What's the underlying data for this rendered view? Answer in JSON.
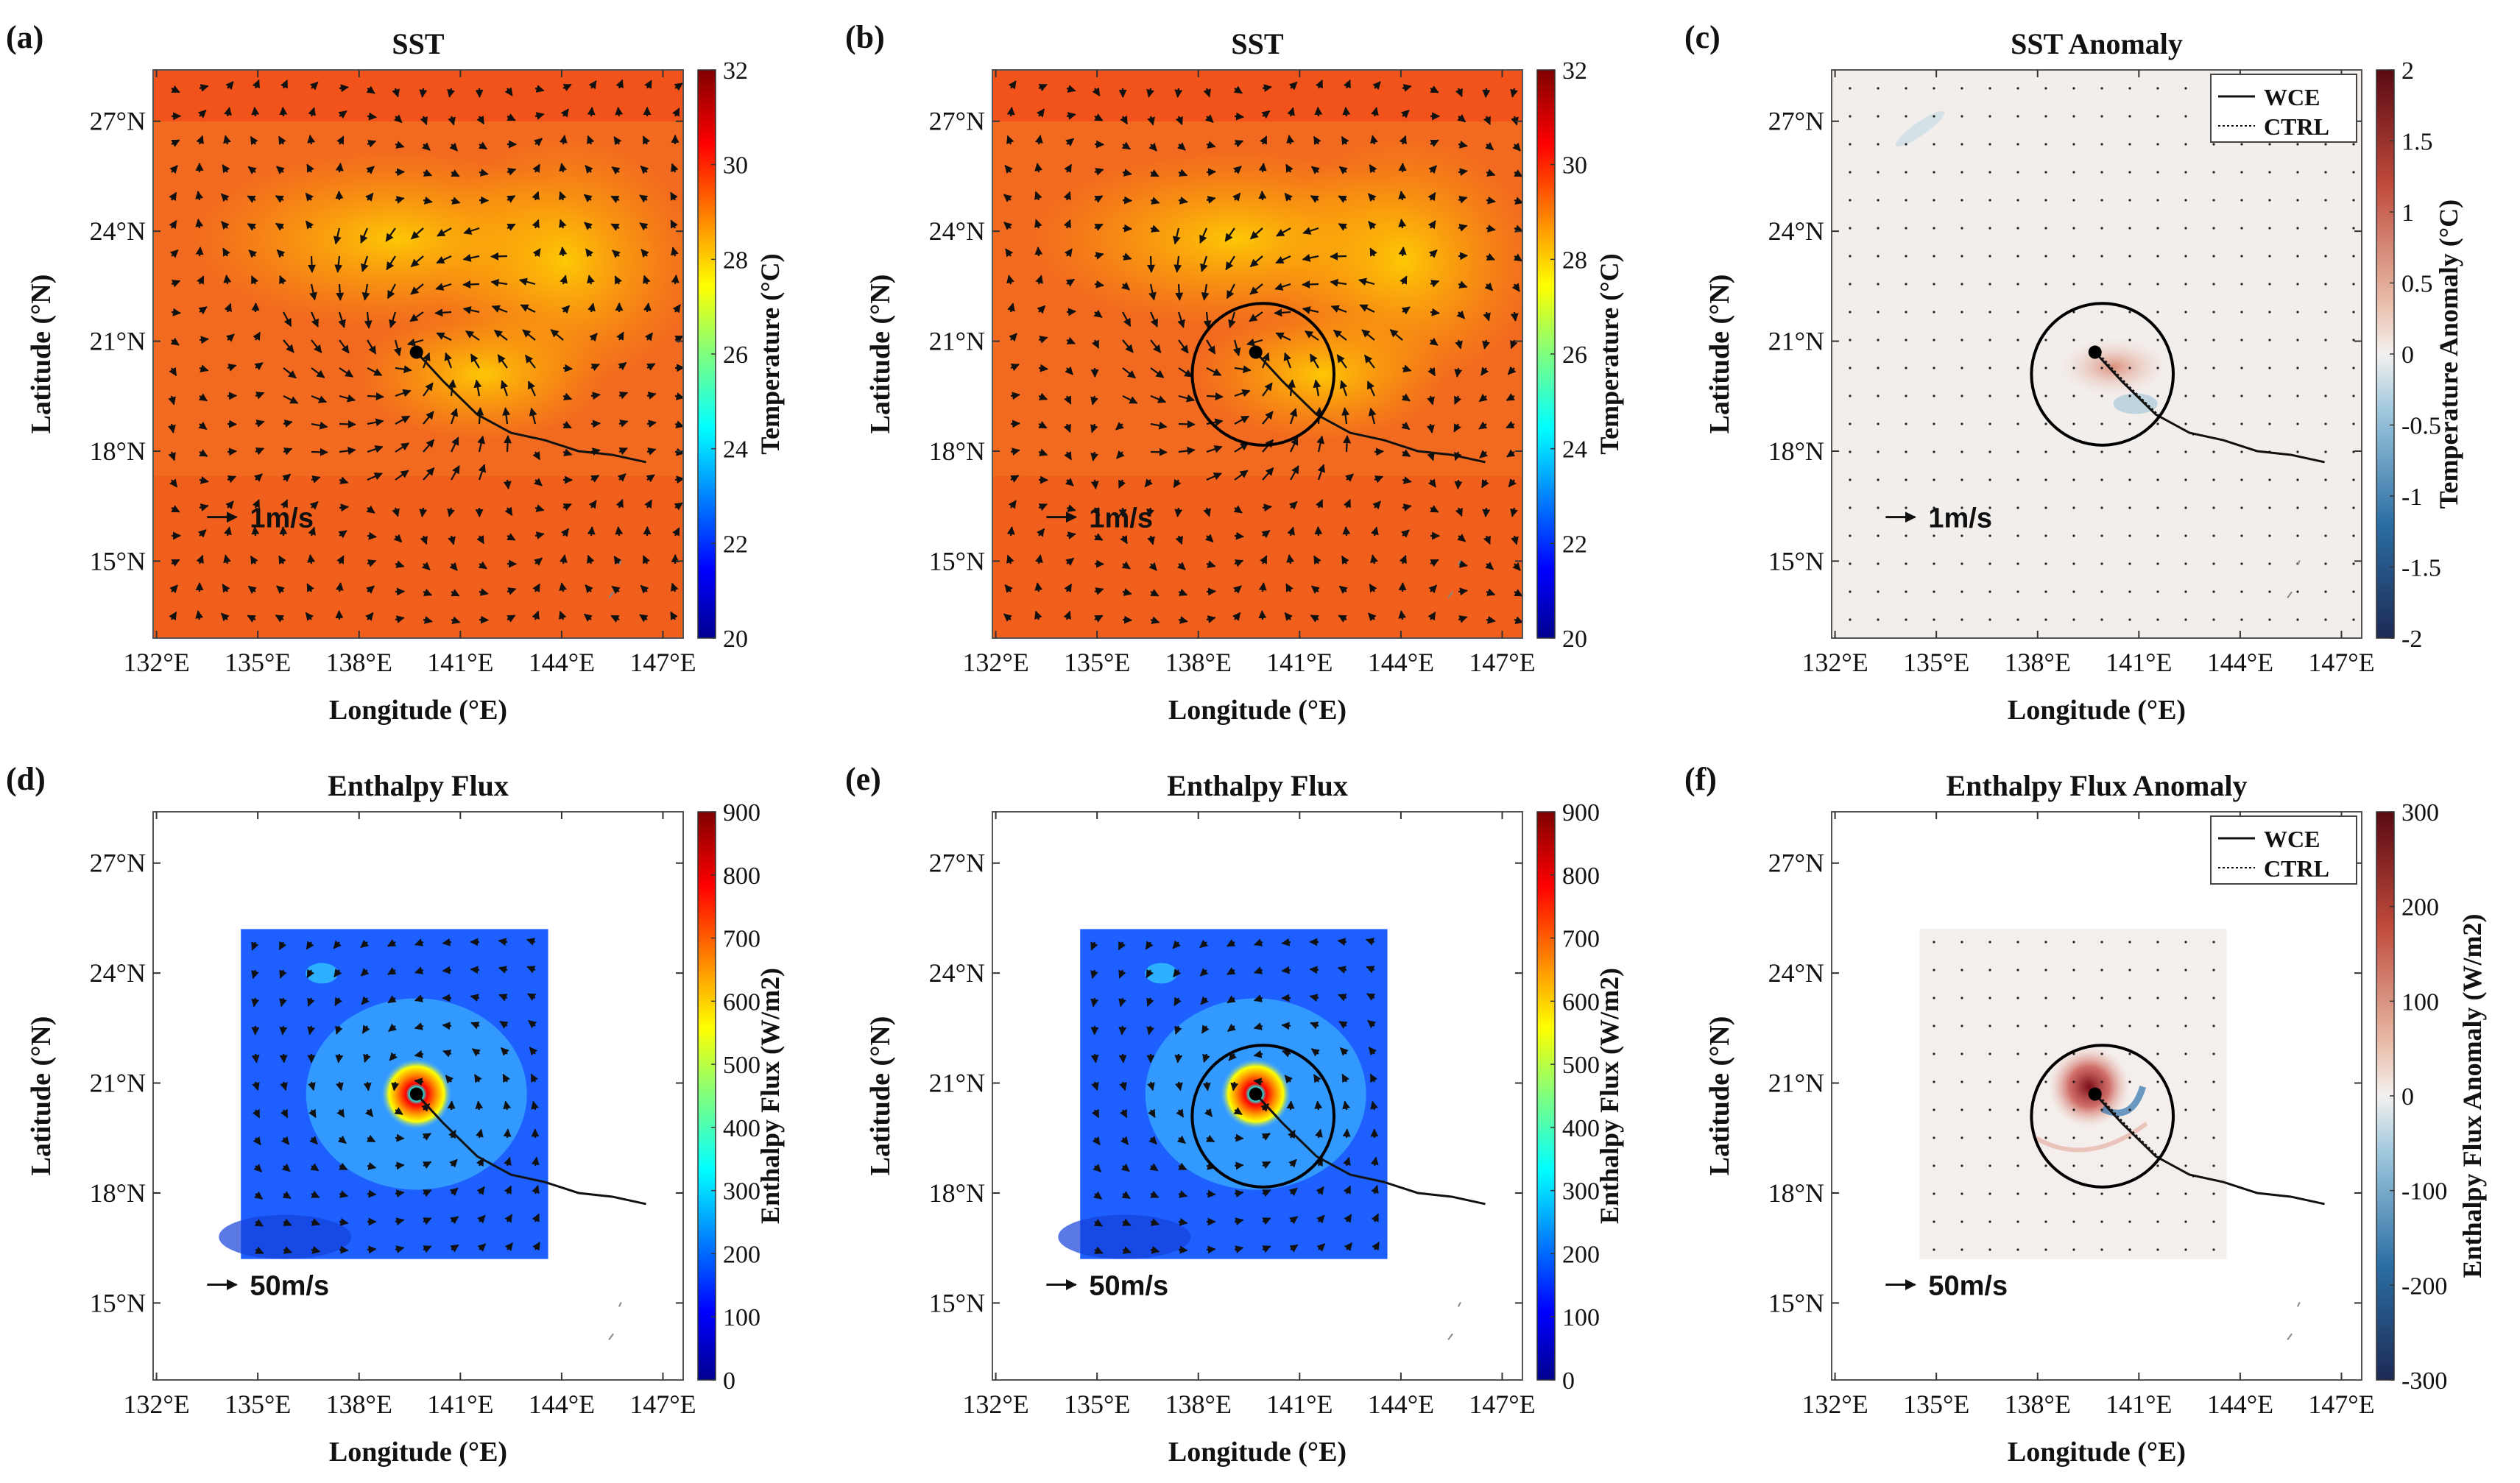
{
  "figure": {
    "panels": [
      {
        "key": "a",
        "letter": "(a)",
        "title": "SST",
        "variable": "sst",
        "colormap": "jet",
        "cbar_label": "Temperature (°C)",
        "cbar_ticks": [
          "20",
          "22",
          "24",
          "26",
          "28",
          "30",
          "32"
        ],
        "cbar_range": [
          20,
          32
        ],
        "scale_label": "1m/s",
        "circle": false,
        "legend": false,
        "wind": "current",
        "data_region": "full"
      },
      {
        "key": "b",
        "letter": "(b)",
        "title": "SST",
        "variable": "sst",
        "colormap": "jet",
        "cbar_label": "Temperature (°C)",
        "cbar_ticks": [
          "20",
          "22",
          "24",
          "26",
          "28",
          "30",
          "32"
        ],
        "cbar_range": [
          20,
          32
        ],
        "scale_label": "1m/s",
        "circle": true,
        "legend": false,
        "wind": "current",
        "data_region": "full"
      },
      {
        "key": "c",
        "letter": "(c)",
        "title": "SST Anomaly",
        "variable": "sst_anom",
        "colormap": "diverging",
        "cbar_label": "Temperature Anomaly (°C)",
        "cbar_ticks": [
          "-2",
          "-1.5",
          "-1",
          "-0.5",
          "0",
          "0.5",
          "1",
          "1.5",
          "2"
        ],
        "cbar_range": [
          -2,
          2
        ],
        "scale_label": "1m/s",
        "circle": true,
        "legend": true,
        "wind": "dots",
        "data_region": "full"
      },
      {
        "key": "d",
        "letter": "(d)",
        "title": "Enthalpy Flux",
        "variable": "flux",
        "colormap": "jet",
        "cbar_label": "Enthalpy Flux (W/m2)",
        "cbar_ticks": [
          "0",
          "100",
          "200",
          "300",
          "400",
          "500",
          "600",
          "700",
          "800",
          "900"
        ],
        "cbar_range": [
          0,
          900
        ],
        "scale_label": "50m/s",
        "circle": false,
        "legend": false,
        "wind": "cyclone",
        "data_region": "box"
      },
      {
        "key": "e",
        "letter": "(e)",
        "title": "Enthalpy Flux",
        "variable": "flux",
        "colormap": "jet",
        "cbar_label": "Enthalpy Flux (W/m2)",
        "cbar_ticks": [
          "0",
          "100",
          "200",
          "300",
          "400",
          "500",
          "600",
          "700",
          "800",
          "900"
        ],
        "cbar_range": [
          0,
          900
        ],
        "scale_label": "50m/s",
        "circle": true,
        "legend": false,
        "wind": "cyclone",
        "data_region": "box"
      },
      {
        "key": "f",
        "letter": "(f)",
        "title": "Enthalpy Flux Anomaly",
        "variable": "flux_anom",
        "colormap": "diverging",
        "cbar_label": "Enthalpy Flux Anomaly (W/m2)",
        "cbar_ticks": [
          "-300",
          "-200",
          "-100",
          "0",
          "100",
          "200",
          "300"
        ],
        "cbar_range": [
          -300,
          300
        ],
        "scale_label": "50m/s",
        "circle": true,
        "legend": true,
        "wind": "dots",
        "data_region": "box"
      }
    ],
    "x_label": "Longitude (°E)",
    "y_label": "Latitude (°N)",
    "x_ticks": [
      "132°E",
      "135°E",
      "138°E",
      "141°E",
      "144°E",
      "147°E"
    ],
    "x_tick_values": [
      132,
      135,
      138,
      141,
      144,
      147
    ],
    "y_ticks": [
      "15°N",
      "18°N",
      "21°N",
      "24°N",
      "27°N"
    ],
    "y_tick_values": [
      15,
      18,
      21,
      24,
      27
    ],
    "legend_labels": [
      "WCE",
      "CTRL"
    ]
  },
  "chart_data": {
    "type": "heatmap",
    "xlim": [
      131.9,
      147.6
    ],
    "ylim": [
      12.9,
      28.4
    ],
    "storm_center": [
      139.7,
      20.7
    ],
    "circle_radius_deg": 2.0,
    "track": [
      [
        139.7,
        20.7
      ],
      [
        140.5,
        19.9
      ],
      [
        141.5,
        19.0
      ],
      [
        142.5,
        18.5
      ],
      [
        143.5,
        18.3
      ],
      [
        144.5,
        18.0
      ],
      [
        145.5,
        17.9
      ],
      [
        146.5,
        17.7
      ]
    ],
    "flux_box": {
      "lon": [
        134.5,
        143.6
      ],
      "lat": [
        16.2,
        25.2
      ]
    },
    "sst_range_C": [
      20,
      32
    ],
    "sst_anomaly_range_C": [
      -2,
      2
    ],
    "flux_range_Wm2": [
      0,
      900
    ],
    "flux_anomaly_range_Wm2": [
      -300,
      300
    ]
  }
}
